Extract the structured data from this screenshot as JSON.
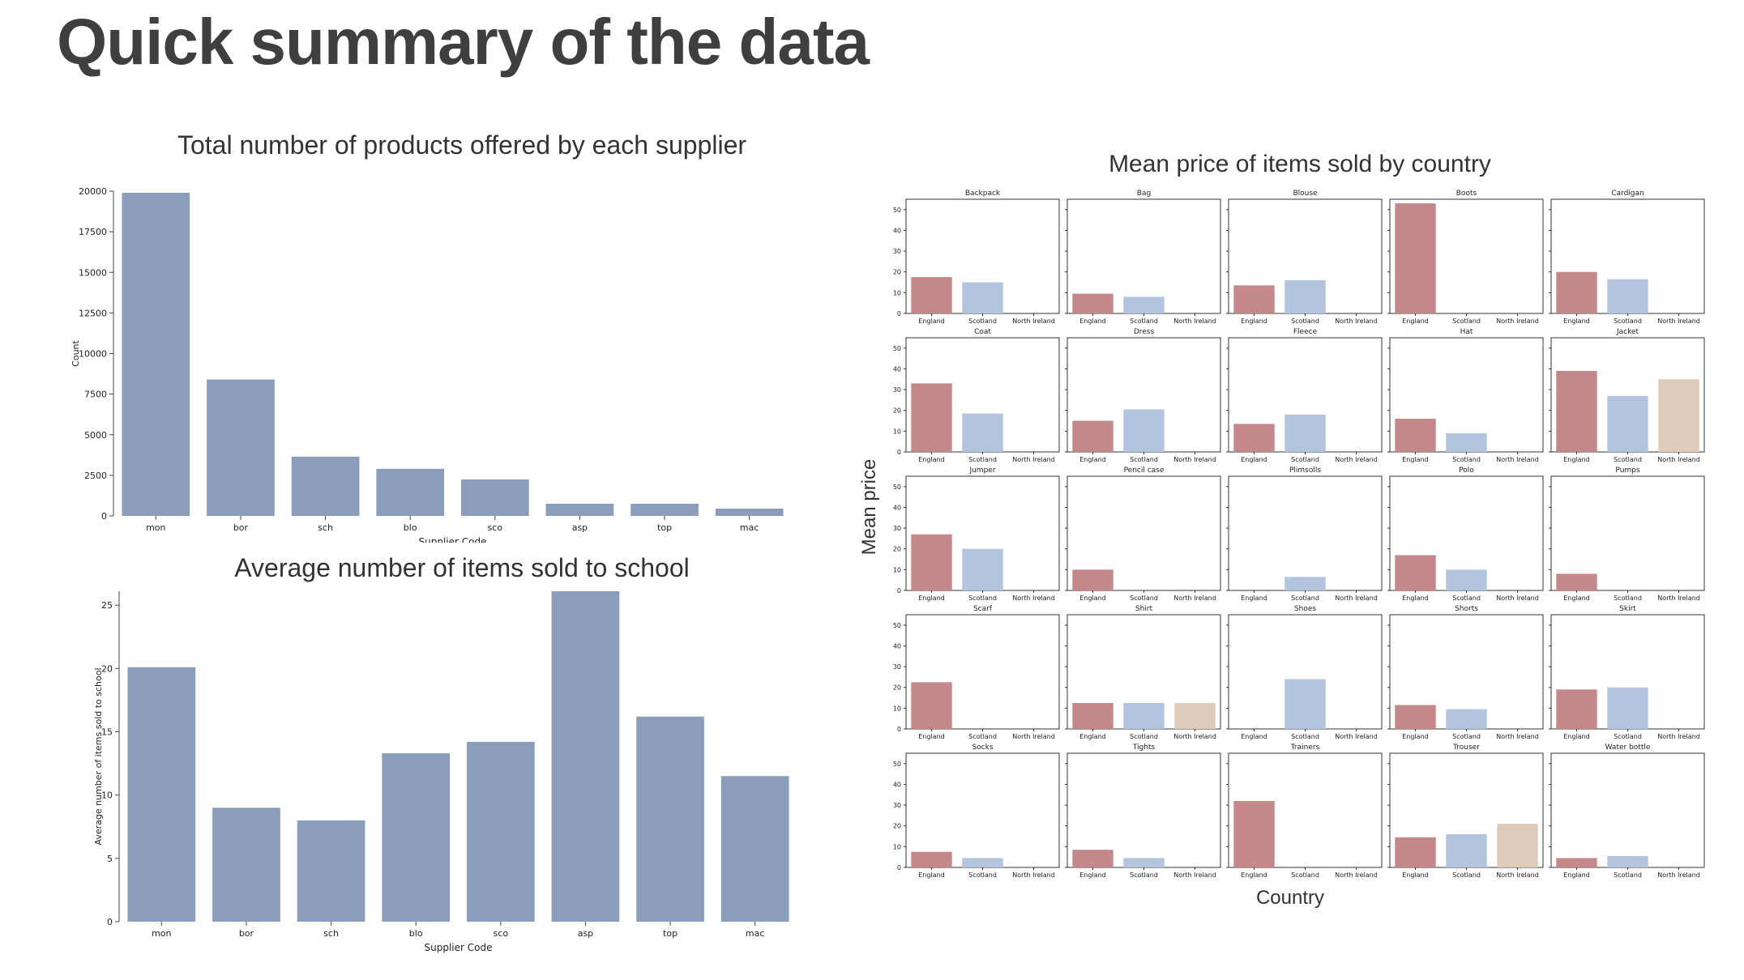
{
  "page": {
    "title": "Quick summary of the data"
  },
  "colors": {
    "bar": "#8a9dba",
    "england": "#c4878a",
    "scotland": "#b3c4de",
    "northern_ireland": "#dfcbba"
  },
  "chart_data": [
    {
      "type": "bar",
      "title": "Total number of products offered by each supplier",
      "xlabel": "Supplier Code",
      "ylabel": "Count",
      "categories": [
        "mon",
        "bor",
        "sch",
        "blo",
        "sco",
        "asp",
        "top",
        "mac"
      ],
      "values": [
        19900,
        8400,
        3650,
        2900,
        2250,
        750,
        750,
        450
      ],
      "ylim": [
        0,
        20000
      ],
      "yticks": [
        0,
        2500,
        5000,
        7500,
        10000,
        12500,
        15000,
        17500,
        20000
      ],
      "grid": false
    },
    {
      "type": "bar",
      "title": "Average number of items sold to school",
      "xlabel": "Supplier Code",
      "ylabel": "Average number of items sold to school",
      "categories": [
        "mon",
        "bor",
        "sch",
        "blo",
        "sco",
        "asp",
        "top",
        "mac"
      ],
      "values": [
        20.1,
        9.0,
        8.0,
        13.3,
        14.2,
        26.1,
        16.2,
        11.5
      ],
      "ylim": [
        0,
        26.1
      ],
      "yticks": [
        0,
        5,
        10,
        15,
        20,
        25
      ],
      "grid": false
    },
    {
      "type": "bar",
      "title": "Mean price of items sold by country",
      "xlabel": "Country",
      "ylabel": "Mean price",
      "categories": [
        "England",
        "Scotland",
        "North Ireland"
      ],
      "ylim": [
        0,
        55
      ],
      "yticks": [
        0,
        10,
        20,
        30,
        40,
        50
      ],
      "grid": false,
      "panels": [
        {
          "title": "Backpack",
          "values": [
            17.5,
            15,
            null
          ]
        },
        {
          "title": "Bag",
          "values": [
            9.5,
            8,
            null
          ]
        },
        {
          "title": "Blouse",
          "values": [
            13.5,
            16,
            null
          ]
        },
        {
          "title": "Boots",
          "values": [
            53,
            null,
            null
          ]
        },
        {
          "title": "Cardigan",
          "values": [
            20,
            16.5,
            null
          ]
        },
        {
          "title": "Coat",
          "values": [
            33,
            18.5,
            null
          ]
        },
        {
          "title": "Dress",
          "values": [
            15,
            20.5,
            null
          ]
        },
        {
          "title": "Fleece",
          "values": [
            13.5,
            18,
            null
          ]
        },
        {
          "title": "Hat",
          "values": [
            16,
            9,
            null
          ]
        },
        {
          "title": "Jacket",
          "values": [
            39,
            27,
            35
          ]
        },
        {
          "title": "Jumper",
          "values": [
            27,
            20,
            null
          ]
        },
        {
          "title": "Pencil case",
          "values": [
            10,
            null,
            null
          ]
        },
        {
          "title": "Plimsolls",
          "values": [
            null,
            6.5,
            null
          ]
        },
        {
          "title": "Polo",
          "values": [
            17,
            10,
            null
          ]
        },
        {
          "title": "Pumps",
          "values": [
            8,
            null,
            null
          ]
        },
        {
          "title": "Scarf",
          "values": [
            22.5,
            null,
            null
          ]
        },
        {
          "title": "Shirt",
          "values": [
            12.5,
            12.5,
            12.5
          ]
        },
        {
          "title": "Shoes",
          "values": [
            null,
            24,
            null
          ]
        },
        {
          "title": "Shorts",
          "values": [
            11.5,
            9.5,
            null
          ]
        },
        {
          "title": "Skirt",
          "values": [
            19,
            20,
            null
          ]
        },
        {
          "title": "Socks",
          "values": [
            7.5,
            4.5,
            null
          ]
        },
        {
          "title": "Tights",
          "values": [
            8.5,
            4.5,
            null
          ]
        },
        {
          "title": "Trainers",
          "values": [
            32,
            null,
            null
          ]
        },
        {
          "title": "Trouser",
          "values": [
            14.5,
            16,
            21
          ]
        },
        {
          "title": "Water bottle",
          "values": [
            4.5,
            5.5,
            null
          ]
        }
      ]
    }
  ]
}
